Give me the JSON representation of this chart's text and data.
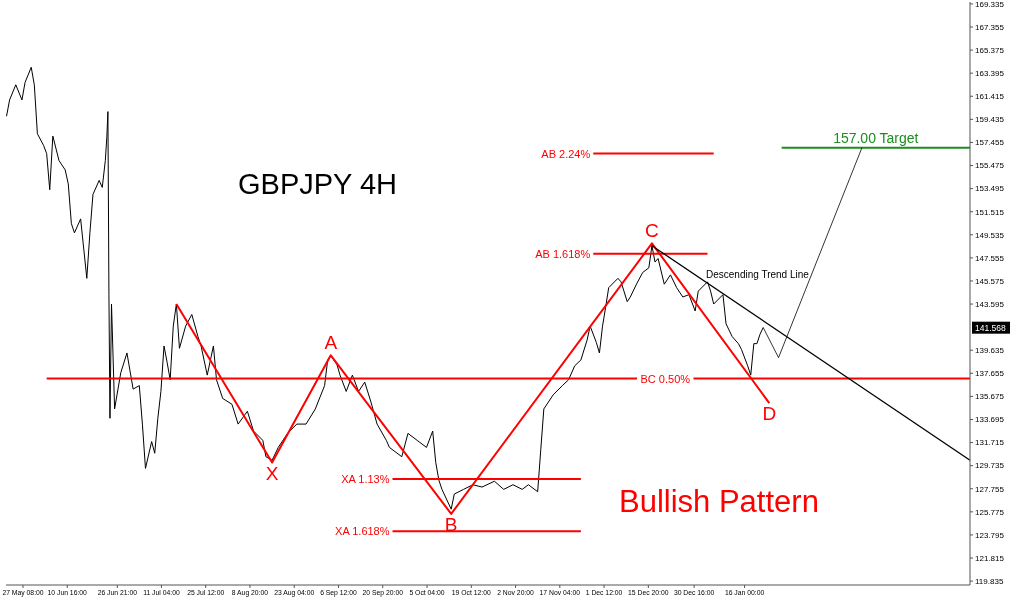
{
  "chart_data": {
    "type": "line",
    "title": "GBPJPY 4H",
    "xlim": [
      "2016-05-21T20:00",
      "2017-03-30T00:00"
    ],
    "ylim": [
      119.5,
      169.5
    ],
    "xticks": [
      {
        "value": "2016-05-27T08:00",
        "label": "27 May 08:00"
      },
      {
        "value": "2016-06-10T16:00",
        "label": "10 Jun 16:00"
      },
      {
        "value": "2016-06-26T21:00",
        "label": "26 Jun 21:00"
      },
      {
        "value": "2016-07-11T04:00",
        "label": "11 Jul 04:00"
      },
      {
        "value": "2016-07-25T12:00",
        "label": "25 Jul 12:00"
      },
      {
        "value": "2016-08-08T20:00",
        "label": "8 Aug 20:00"
      },
      {
        "value": "2016-08-23T04:00",
        "label": "23 Aug 04:00"
      },
      {
        "value": "2016-09-06T12:00",
        "label": "6 Sep 12:00"
      },
      {
        "value": "2016-09-20T20:00",
        "label": "20 Sep 20:00"
      },
      {
        "value": "2016-10-05T04:00",
        "label": "5 Oct 04:00"
      },
      {
        "value": "2016-10-19T12:00",
        "label": "19 Oct 12:00"
      },
      {
        "value": "2016-11-02T20:00",
        "label": "2 Nov 20:00"
      },
      {
        "value": "2016-11-17T04:00",
        "label": "17 Nov 04:00"
      },
      {
        "value": "2016-12-01T12:00",
        "label": "1 Dec 12:00"
      },
      {
        "value": "2016-12-15T20:00",
        "label": "15 Dec 20:00"
      },
      {
        "value": "2016-12-30T16:00",
        "label": "30 Dec 16:00"
      },
      {
        "value": "2017-01-16T00:00",
        "label": "16 Jan 00:00"
      }
    ],
    "yticks": [
      119.835,
      121.815,
      123.795,
      125.775,
      127.755,
      129.735,
      131.715,
      133.695,
      135.675,
      137.655,
      139.635,
      143.595,
      145.575,
      147.555,
      149.535,
      151.515,
      153.495,
      155.475,
      157.455,
      159.435,
      161.415,
      163.395,
      165.375,
      167.355,
      169.335
    ],
    "series": [
      {
        "color": "#000000",
        "x": [
          "2016-05-22T00:00",
          "2016-05-23T00:00",
          "2016-05-25T00:00",
          "2016-05-27T00:00",
          "2016-05-28T00:00",
          "2016-05-30T00:00",
          "2016-05-31T00:00",
          "2016-06-01T00:00",
          "2016-06-03T00:00",
          "2016-06-04T00:00",
          "2016-06-05T00:00",
          "2016-06-06T00:00",
          "2016-06-08T00:00",
          "2016-06-10T00:00",
          "2016-06-11T00:00",
          "2016-06-12T00:00",
          "2016-06-13T00:00",
          "2016-06-15T00:00",
          "2016-06-17T00:00",
          "2016-06-18T00:00",
          "2016-06-19T00:00",
          "2016-06-21T00:00",
          "2016-06-22T00:00",
          "2016-06-23T00:00",
          "2016-06-23T12:00",
          "2016-06-23T20:00",
          "2016-06-24T04:00",
          "2016-06-24T12:00",
          "2016-06-25T00:00",
          "2016-06-26T00:00",
          "2016-06-28T00:00",
          "2016-06-30T00:00",
          "2016-07-02T00:00",
          "2016-07-04T00:00",
          "2016-07-05T00:00",
          "2016-07-06T00:00",
          "2016-07-08T00:00",
          "2016-07-09T00:00",
          "2016-07-10T00:00",
          "2016-07-11T00:00",
          "2016-07-12T00:00",
          "2016-07-13T00:00",
          "2016-07-14T00:00",
          "2016-07-15T00:00",
          "2016-07-16T00:00",
          "2016-07-17T00:00",
          "2016-07-19T00:00",
          "2016-07-21T00:00",
          "2016-07-23T00:00",
          "2016-07-24T00:00",
          "2016-07-26T00:00",
          "2016-07-28T00:00",
          "2016-07-29T00:00",
          "2016-07-31T00:00",
          "2016-08-03T00:00",
          "2016-08-05T00:00",
          "2016-08-08T00:00",
          "2016-08-10T00:00",
          "2016-08-13T00:00",
          "2016-08-14T00:00",
          "2016-08-16T00:00",
          "2016-08-18T00:00",
          "2016-08-21T00:00",
          "2016-08-24T00:00",
          "2016-08-27T00:00",
          "2016-08-30T00:00",
          "2016-09-02T00:00",
          "2016-09-03T00:00",
          "2016-09-04T00:00",
          "2016-09-06T00:00",
          "2016-09-07T00:00",
          "2016-09-09T00:00",
          "2016-09-11T00:00",
          "2016-09-13T00:00",
          "2016-09-15T00:00",
          "2016-09-17T00:00",
          "2016-09-19T00:00",
          "2016-09-22T00:00",
          "2016-09-23T00:00",
          "2016-09-27T00:00",
          "2016-09-29T00:00",
          "2016-10-02T00:00",
          "2016-10-05T00:00",
          "2016-10-07T00:00",
          "2016-10-08T00:00",
          "2016-10-09T00:00",
          "2016-10-10T00:00",
          "2016-10-13T00:00",
          "2016-10-14T00:00",
          "2016-10-17T00:00",
          "2016-10-20T00:00",
          "2016-10-23T00:00",
          "2016-10-27T00:00",
          "2016-10-30T00:00",
          "2016-11-02T00:00",
          "2016-11-05T00:00",
          "2016-11-07T00:00",
          "2016-11-10T00:00",
          "2016-11-11T00:00",
          "2016-11-12T00:00",
          "2016-11-15T00:00",
          "2016-11-18T00:00",
          "2016-11-20T00:00",
          "2016-11-22T00:00",
          "2016-11-24T00:00",
          "2016-11-26T00:00",
          "2016-11-27T00:00",
          "2016-11-29T00:00",
          "2016-11-30T00:00",
          "2016-12-01T00:00",
          "2016-12-02T00:00",
          "2016-12-03T00:00",
          "2016-12-06T00:00",
          "2016-12-07T00:00",
          "2016-12-09T00:00",
          "2016-12-10T00:00",
          "2016-12-12T00:00",
          "2016-12-14T00:00",
          "2016-12-16T00:00",
          "2016-12-17T00:00",
          "2016-12-18T00:00",
          "2016-12-19T00:00",
          "2016-12-21T00:00",
          "2016-12-23T00:00",
          "2016-12-25T00:00",
          "2016-12-27T00:00",
          "2016-12-29T00:00",
          "2016-12-31T00:00",
          "2017-01-01T00:00",
          "2017-01-04T00:00",
          "2017-01-05T00:00",
          "2017-01-06T00:00",
          "2017-01-09T00:00",
          "2017-01-10T00:00",
          "2017-01-12T00:00",
          "2017-01-14T00:00",
          "2017-01-15T00:00",
          "2017-01-17T00:00",
          "2017-01-18T00:00",
          "2017-01-19T00:00",
          "2017-01-20T00:00",
          "2017-01-21T00:00",
          "2017-01-22T00:00"
        ],
        "values": [
          159.7,
          161.1,
          162.4,
          161.1,
          162.6,
          163.9,
          162.4,
          158.2,
          157.2,
          156.5,
          153.4,
          158.0,
          155.9,
          155.1,
          153.9,
          150.5,
          149.7,
          150.9,
          145.8,
          149.7,
          153.0,
          154.2,
          153.6,
          155.9,
          158.0,
          160.1,
          144.4,
          133.8,
          143.6,
          134.6,
          137.7,
          139.4,
          136.3,
          136.6,
          133.3,
          129.5,
          131.8,
          130.8,
          133.8,
          136.1,
          140.0,
          138.6,
          137.1,
          141.7,
          143.6,
          139.8,
          141.7,
          142.7,
          140.8,
          140.0,
          137.5,
          140.0,
          137.1,
          135.5,
          135.0,
          133.3,
          134.4,
          132.7,
          131.9,
          130.5,
          130.2,
          131.3,
          132.5,
          133.3,
          133.3,
          134.6,
          136.6,
          138.8,
          139.2,
          138.4,
          137.5,
          136.1,
          137.5,
          136.1,
          136.9,
          135.2,
          133.3,
          131.9,
          131.3,
          130.5,
          132.5,
          131.9,
          131.3,
          132.7,
          130.0,
          128.5,
          127.7,
          126.0,
          127.3,
          127.7,
          128.1,
          127.9,
          128.4,
          127.7,
          128.1,
          127.7,
          128.1,
          127.5,
          131.1,
          134.6,
          135.8,
          136.6,
          137.1,
          138.3,
          138.8,
          140.5,
          141.7,
          140.3,
          139.4,
          141.7,
          143.3,
          145.0,
          145.8,
          145.5,
          143.8,
          144.2,
          145.3,
          146.3,
          146.7,
          148.6,
          147.2,
          147.5,
          145.3,
          146.1,
          145.0,
          144.2,
          144.4,
          143.0,
          144.7,
          145.5,
          144.7,
          143.6,
          144.4,
          141.9,
          140.8,
          140.2,
          139.7,
          138.3,
          137.5,
          140.2,
          140.2,
          141.0,
          141.568
        ]
      },
      {
        "color": "#ff0000",
        "x": [
          "2016-07-16T00:00",
          "2016-08-16T00:00",
          "2016-09-04T00:00",
          "2016-10-13T00:00",
          "2016-12-17T00:00",
          "2017-01-24T00:00"
        ],
        "values": [
          143.6,
          130.0,
          139.2,
          125.6,
          148.8,
          135.1
        ]
      },
      {
        "name": "BC 0.50%",
        "color": "#ff0000",
        "x": [
          "2016-06-04T00:00",
          "2017-03-30T00:00"
        ],
        "values": [
          137.2,
          137.2
        ]
      },
      {
        "name": "AB 2.24%",
        "color": "#ff0000",
        "x": [
          "2016-11-28T00:00",
          "2017-01-06T00:00"
        ],
        "values": [
          156.5,
          156.5
        ]
      },
      {
        "name": "AB 1.618%",
        "color": "#ff0000",
        "x": [
          "2016-11-28T00:00",
          "2017-01-04T00:00"
        ],
        "values": [
          147.9,
          147.9
        ]
      },
      {
        "name": "XA 1.13%",
        "color": "#ff0000",
        "x": [
          "2016-09-24T00:00",
          "2016-11-24T00:00"
        ],
        "values": [
          128.6,
          128.6
        ]
      },
      {
        "name": "XA 1.618%",
        "color": "#ff0000",
        "x": [
          "2016-09-24T00:00",
          "2016-11-24T00:00"
        ],
        "values": [
          124.1,
          124.1
        ]
      },
      {
        "name": "157.00 Target",
        "color": "#1e8c1e",
        "x": [
          "2017-01-28T00:00",
          "2017-03-30T00:00"
        ],
        "values": [
          157.0,
          157.0
        ]
      },
      {
        "color": "#000000",
        "x": [
          "2016-12-17T00:00",
          "2017-03-30T00:00"
        ],
        "values": [
          148.6,
          130.2
        ]
      },
      {
        "color": "#000000",
        "x": [
          "2017-01-22T00:00",
          "2017-01-27T00:00",
          "2017-02-23T00:00"
        ],
        "values": [
          141.6,
          139.0,
          157.0
        ]
      }
    ],
    "annotations": [
      {
        "text": "X",
        "x": "2016-08-16T00:00",
        "y": 130.0
      },
      {
        "text": "A",
        "x": "2016-09-04T00:00",
        "y": 139.2
      },
      {
        "text": "B",
        "x": "2016-10-13T00:00",
        "y": 125.6
      },
      {
        "text": "C",
        "x": "2016-12-17T00:00",
        "y": 148.8
      },
      {
        "text": "D",
        "x": "2017-01-24T00:00",
        "y": 135.1
      },
      "Descending Trend Line",
      "Bullish Pattern",
      "141.568"
    ]
  }
}
